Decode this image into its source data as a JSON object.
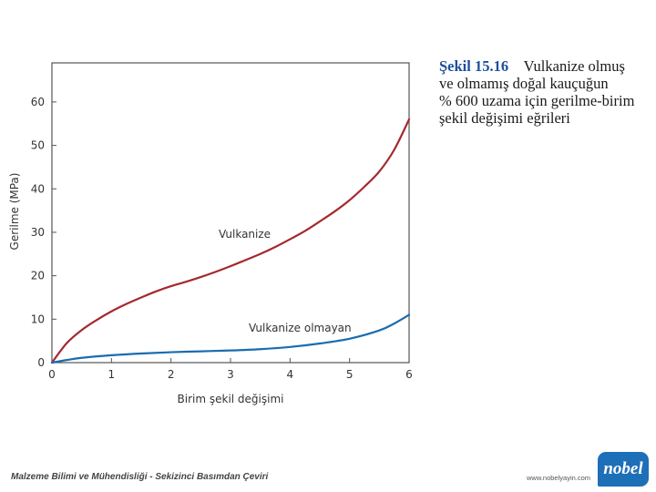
{
  "chart_data": {
    "type": "line",
    "xlabel": "Birim şekil değişimi",
    "ylabel": "Gerilme (MPa)",
    "xlim": [
      0,
      6
    ],
    "ylim": [
      0,
      69
    ],
    "xticks": [
      "0",
      "1",
      "2",
      "3",
      "4",
      "5",
      "6"
    ],
    "yticks": [
      "0",
      "10",
      "20",
      "30",
      "40",
      "50",
      "60"
    ],
    "grid": false,
    "series": [
      {
        "name": "Vulkanize",
        "color": "#a32a2f",
        "x": [
          0,
          0.25,
          0.5,
          0.75,
          1,
          1.25,
          1.5,
          1.75,
          2,
          2.25,
          2.5,
          2.75,
          3,
          3.25,
          3.5,
          3.75,
          4,
          4.25,
          4.5,
          4.75,
          5,
          5.25,
          5.5,
          5.75,
          6
        ],
        "y": [
          0,
          4.5,
          7.5,
          9.8,
          11.8,
          13.5,
          15,
          16.4,
          17.6,
          18.6,
          19.7,
          20.9,
          22.2,
          23.6,
          25,
          26.6,
          28.4,
          30.3,
          32.5,
          34.8,
          37.4,
          40.5,
          44,
          49,
          56
        ]
      },
      {
        "name": "Vulkanize olmayan",
        "color": "#1a6cae",
        "x": [
          0,
          0.25,
          0.5,
          1,
          1.5,
          2,
          2.5,
          3,
          3.5,
          4,
          4.5,
          5,
          5.5,
          5.75,
          6
        ],
        "y": [
          0,
          0.6,
          1.1,
          1.7,
          2.1,
          2.4,
          2.6,
          2.8,
          3.1,
          3.6,
          4.4,
          5.5,
          7.4,
          9,
          11
        ]
      }
    ]
  },
  "caption": {
    "lead": "Şekil 15.16",
    "lines": [
      "Vulkanize olmuş",
      "ve olmamış doğal kauçuğun",
      "% 600 uzama için gerilme-birim",
      "şekil değişimi eğrileri"
    ]
  },
  "footer": {
    "text": "Malzeme Bilimi ve Mühendisliği - Sekizinci Basımdan Çeviri",
    "url": "www.nobelyayin.com",
    "logo": "nobel"
  }
}
